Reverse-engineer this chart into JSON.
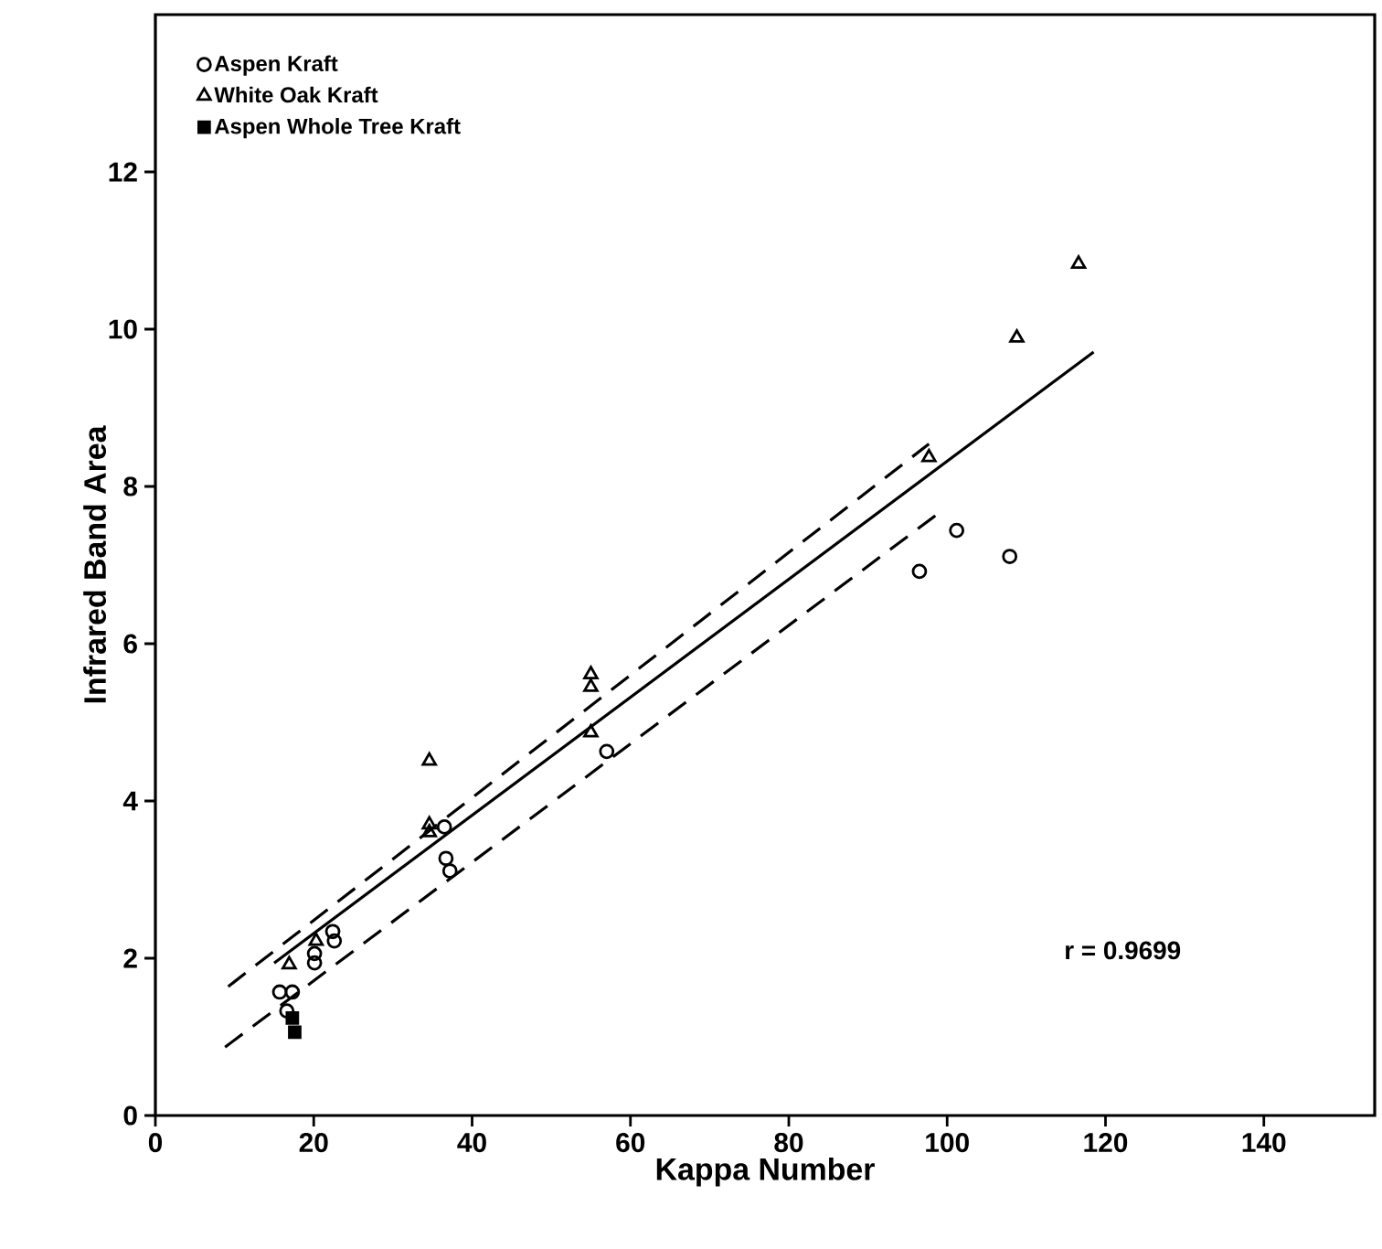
{
  "chart_data": {
    "type": "scatter",
    "xlabel": "Kappa Number",
    "ylabel": "Infrared Band Area",
    "xlim": [
      0,
      154
    ],
    "ylim": [
      0,
      14
    ],
    "xticks": [
      0,
      20,
      40,
      60,
      80,
      100,
      120,
      140
    ],
    "yticks": [
      0,
      2,
      4,
      6,
      8,
      10,
      12
    ],
    "grid": false,
    "legend": "top left",
    "annotations": [
      "r = 0.9699"
    ],
    "series": [
      {
        "name": "Aspen Kraft",
        "color": "#000000",
        "marker": "circle",
        "x": [
          15.7,
          17.3,
          16.6,
          20.1,
          20.1,
          22.4,
          22.6,
          36.5,
          36.7,
          37.2,
          57,
          96.5,
          101.2,
          107.9
        ],
        "values": [
          1.57,
          1.57,
          1.33,
          2.06,
          1.94,
          2.34,
          2.22,
          3.67,
          3.27,
          3.11,
          4.63,
          6.92,
          7.44,
          7.11
        ]
      },
      {
        "name": "White Oak Kraft",
        "color": "#000000",
        "marker": "triangle",
        "x": [
          16.9,
          20.3,
          34.6,
          34.6,
          34.6,
          55,
          55,
          55,
          97.7,
          108.8,
          116.6
        ],
        "values": [
          1.92,
          2.22,
          4.51,
          3.7,
          3.6,
          5.61,
          5.45,
          4.87,
          8.37,
          9.89,
          10.83
        ]
      },
      {
        "name": "Aspen Whole Tree Kraft",
        "color": "#000000",
        "marker": "square",
        "x": [
          17.3,
          17.6
        ],
        "values": [
          1.24,
          1.06
        ]
      },
      {
        "type": "line",
        "color": "#000000",
        "line_style": "solid",
        "x": [
          15,
          118.5
        ],
        "values": [
          1.94,
          9.71
        ]
      },
      {
        "type": "line",
        "color": "#000000",
        "line_style": "dashed",
        "x": [
          9.2,
          97.7
        ],
        "values": [
          1.64,
          8.54
        ]
      },
      {
        "type": "line",
        "color": "#000000",
        "line_style": "dashed",
        "x": [
          8.8,
          98.8
        ],
        "values": [
          0.87,
          7.65
        ]
      }
    ]
  }
}
